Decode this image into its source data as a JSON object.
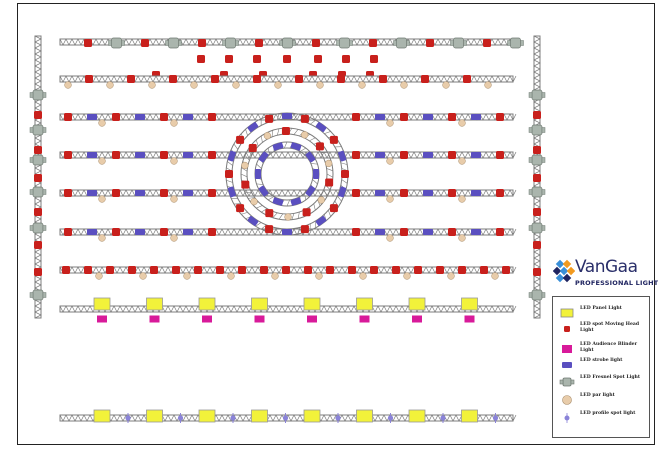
{
  "brand": {
    "name": "VanGaa",
    "tagline": "PROFESSIONAL LIGHTS",
    "colors": {
      "text": "#2a2f6a",
      "accent_blue": "#3a8fd8",
      "accent_orange": "#f29a1f",
      "accent_navy": "#1f2460"
    }
  },
  "legend": {
    "items": [
      {
        "label": "LED Panel Light",
        "icon": "panel-light-icon",
        "color": "#f2f23a"
      },
      {
        "label": "LED spot Moving Head Light",
        "icon": "moving-head-light-icon",
        "color": "#c8201c"
      },
      {
        "label": "LED Audience Blinder Light",
        "icon": "blinder-light-icon",
        "color": "#d81a9a"
      },
      {
        "label": "LED strobe light",
        "icon": "strobe-light-icon",
        "color": "#5a4fc0"
      },
      {
        "label": "LED Fresnel Spot Light",
        "icon": "fresnel-spot-light-icon",
        "color": "#aab5ad"
      },
      {
        "label": "LED par light",
        "icon": "par-light-icon",
        "color": "#e8ccaa"
      },
      {
        "label": "LED profile spot light",
        "icon": "profile-spot-light-icon",
        "color": "#8a83d8"
      }
    ]
  },
  "colors": {
    "truss": "#7c7c7c",
    "truss_fill": "#d8d8d8",
    "frame": "#222222"
  }
}
